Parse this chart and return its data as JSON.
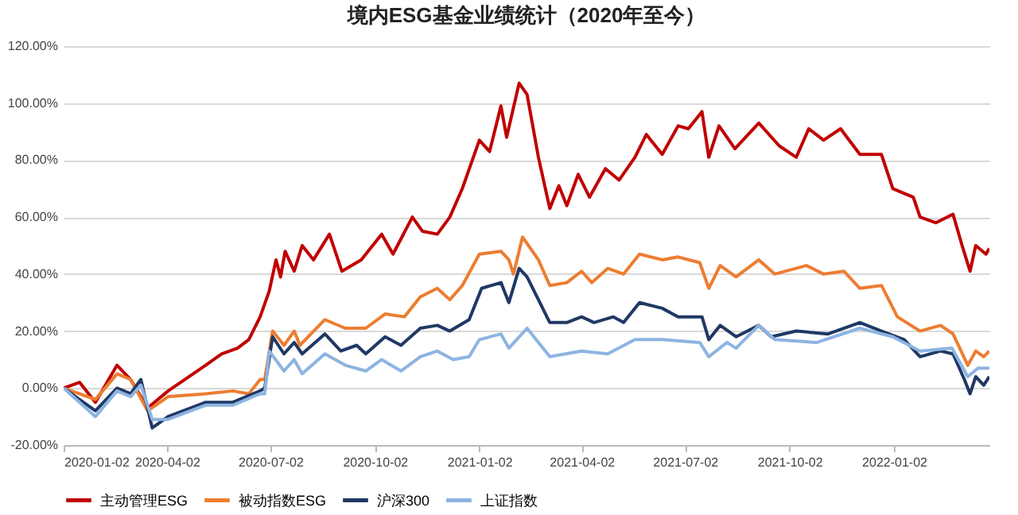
{
  "chart_data": {
    "type": "line",
    "title": "境内ESG基金业绩统计（2020年至今）",
    "xlim": [
      "2020-01-02",
      "2022-03-27"
    ],
    "xticks": [
      "2020-01-02",
      "2020-04-02",
      "2020-07-02",
      "2020-10-02",
      "2021-01-02",
      "2021-04-02",
      "2021-07-02",
      "2021-10-02",
      "2022-01-02"
    ],
    "ylim": [
      -20,
      120
    ],
    "yticks": [
      {
        "value": -20,
        "label": "-20.00%"
      },
      {
        "value": 0,
        "label": "0.00%"
      },
      {
        "value": 20,
        "label": "20.00%"
      },
      {
        "value": 40,
        "label": "40.00%"
      },
      {
        "value": 60,
        "label": "60.00%"
      },
      {
        "value": 80,
        "label": "80.00%"
      },
      {
        "value": 100,
        "label": "100.00%"
      },
      {
        "value": 120,
        "label": "120.00%"
      }
    ],
    "grid": "y",
    "legend": "bottom",
    "line_style": "solid",
    "marker": "none",
    "series": [
      {
        "name": "主动管理ESG",
        "color": "#c00000",
        "x": [
          "2020-01-02",
          "2020-01-16",
          "2020-01-30",
          "2020-02-18",
          "2020-03-01",
          "2020-03-16",
          "2020-04-03",
          "2020-05-06",
          "2020-05-20",
          "2020-06-03",
          "2020-06-13",
          "2020-06-23",
          "2020-07-01",
          "2020-07-07",
          "2020-07-11",
          "2020-07-15",
          "2020-07-23",
          "2020-07-30",
          "2020-08-09",
          "2020-08-23",
          "2020-09-03",
          "2020-09-20",
          "2020-10-08",
          "2020-10-18",
          "2020-11-04",
          "2020-11-13",
          "2020-11-26",
          "2020-12-07",
          "2020-12-18",
          "2021-01-02",
          "2021-01-11",
          "2021-01-21",
          "2021-01-26",
          "2021-02-06",
          "2021-02-13",
          "2021-02-23",
          "2021-03-05",
          "2021-03-13",
          "2021-03-20",
          "2021-03-30",
          "2021-04-09",
          "2021-04-23",
          "2021-05-05",
          "2021-05-19",
          "2021-05-29",
          "2021-06-12",
          "2021-06-26",
          "2021-07-05",
          "2021-07-17",
          "2021-07-23",
          "2021-08-01",
          "2021-08-15",
          "2021-09-05",
          "2021-09-23",
          "2021-10-08",
          "2021-10-19",
          "2021-11-01",
          "2021-11-16",
          "2021-12-03",
          "2021-12-22",
          "2022-01-01",
          "2022-01-19",
          "2022-01-25",
          "2022-02-08",
          "2022-02-23",
          "2022-03-03",
          "2022-03-10",
          "2022-03-15",
          "2022-03-24",
          "2022-03-27"
        ],
        "values": [
          0,
          2,
          -5,
          8,
          3,
          -7,
          -1,
          8,
          12,
          14,
          17,
          25,
          34,
          45,
          39,
          48,
          41,
          50,
          45,
          54,
          41,
          45,
          54,
          47,
          60,
          55,
          54,
          60,
          70,
          87,
          83,
          99,
          88,
          107,
          103,
          81,
          63,
          71,
          64,
          75,
          67,
          77,
          73,
          81,
          89,
          82,
          92,
          91,
          97,
          81,
          92,
          84,
          93,
          85,
          81,
          91,
          87,
          91,
          82,
          82,
          70,
          67,
          60,
          58,
          61,
          50,
          41,
          50,
          47,
          49
        ]
      },
      {
        "name": "被动指数ESG",
        "color": "#ed7d31",
        "x": [
          "2020-01-02",
          "2020-01-30",
          "2020-02-18",
          "2020-03-01",
          "2020-03-16",
          "2020-04-03",
          "2020-05-06",
          "2020-05-30",
          "2020-06-13",
          "2020-06-23",
          "2020-06-27",
          "2020-07-04",
          "2020-07-14",
          "2020-07-23",
          "2020-07-28",
          "2020-08-19",
          "2020-09-06",
          "2020-09-24",
          "2020-10-11",
          "2020-10-28",
          "2020-11-11",
          "2020-11-26",
          "2020-12-07",
          "2020-12-18",
          "2021-01-02",
          "2021-01-21",
          "2021-01-28",
          "2021-02-01",
          "2021-02-09",
          "2021-02-23",
          "2021-03-05",
          "2021-03-20",
          "2021-04-02",
          "2021-04-11",
          "2021-04-25",
          "2021-05-09",
          "2021-05-23",
          "2021-06-12",
          "2021-06-26",
          "2021-07-15",
          "2021-07-23",
          "2021-08-02",
          "2021-08-16",
          "2021-09-05",
          "2021-09-19",
          "2021-10-17",
          "2021-11-01",
          "2021-11-19",
          "2021-12-03",
          "2021-12-22",
          "2022-01-05",
          "2022-01-25",
          "2022-02-12",
          "2022-02-23",
          "2022-03-08",
          "2022-03-15",
          "2022-03-22",
          "2022-03-27"
        ],
        "values": [
          0,
          -4,
          5,
          3,
          -8,
          -3,
          -2,
          -1,
          -2,
          3,
          3,
          20,
          15,
          20,
          15,
          24,
          21,
          21,
          26,
          25,
          32,
          35,
          31,
          36,
          47,
          48,
          45,
          40,
          53,
          45,
          36,
          37,
          41,
          37,
          42,
          40,
          47,
          45,
          46,
          44,
          35,
          43,
          39,
          45,
          40,
          43,
          40,
          41,
          35,
          36,
          25,
          20,
          22,
          19,
          8,
          13,
          11,
          13
        ]
      },
      {
        "name": "沪深300",
        "color": "#203864",
        "x": [
          "2020-01-02",
          "2020-01-30",
          "2020-02-18",
          "2020-03-01",
          "2020-03-10",
          "2020-03-20",
          "2020-04-03",
          "2020-05-06",
          "2020-05-30",
          "2020-06-23",
          "2020-06-27",
          "2020-07-04",
          "2020-07-14",
          "2020-07-23",
          "2020-07-30",
          "2020-08-19",
          "2020-09-02",
          "2020-09-16",
          "2020-09-24",
          "2020-10-11",
          "2020-10-25",
          "2020-11-11",
          "2020-11-26",
          "2020-12-07",
          "2020-12-24",
          "2021-01-04",
          "2021-01-21",
          "2021-01-28",
          "2021-02-06",
          "2021-02-13",
          "2021-03-05",
          "2021-03-20",
          "2021-04-02",
          "2021-04-13",
          "2021-04-30",
          "2021-05-09",
          "2021-05-23",
          "2021-06-12",
          "2021-06-26",
          "2021-07-17",
          "2021-07-23",
          "2021-08-02",
          "2021-08-16",
          "2021-09-05",
          "2021-09-16",
          "2021-10-08",
          "2021-11-05",
          "2021-12-03",
          "2021-12-22",
          "2022-01-11",
          "2022-01-25",
          "2022-02-12",
          "2022-02-23",
          "2022-03-05",
          "2022-03-10",
          "2022-03-15",
          "2022-03-22",
          "2022-03-27"
        ],
        "values": [
          0,
          -8,
          0,
          -2,
          3,
          -14,
          -10,
          -5,
          -5,
          -1,
          0,
          18,
          12,
          16,
          12,
          19,
          13,
          15,
          12,
          18,
          15,
          21,
          22,
          20,
          24,
          35,
          37,
          30,
          42,
          39,
          23,
          23,
          25,
          23,
          25,
          23,
          30,
          28,
          25,
          25,
          17,
          22,
          18,
          22,
          18,
          20,
          19,
          23,
          20,
          17,
          11,
          13,
          12,
          3,
          -2,
          4,
          1,
          4
        ]
      },
      {
        "name": "上证指数",
        "color": "#8db4e2",
        "x": [
          "2020-01-02",
          "2020-01-30",
          "2020-02-18",
          "2020-03-01",
          "2020-03-10",
          "2020-03-20",
          "2020-04-03",
          "2020-05-06",
          "2020-05-30",
          "2020-06-23",
          "2020-06-27",
          "2020-07-01",
          "2020-07-14",
          "2020-07-23",
          "2020-07-30",
          "2020-08-19",
          "2020-09-06",
          "2020-09-24",
          "2020-10-08",
          "2020-10-25",
          "2020-11-11",
          "2020-11-26",
          "2020-12-10",
          "2020-12-24",
          "2021-01-02",
          "2021-01-21",
          "2021-01-28",
          "2021-02-13",
          "2021-03-05",
          "2021-04-02",
          "2021-04-25",
          "2021-05-19",
          "2021-06-12",
          "2021-07-15",
          "2021-07-23",
          "2021-08-08",
          "2021-08-16",
          "2021-09-05",
          "2021-09-19",
          "2021-10-26",
          "2021-12-03",
          "2022-01-01",
          "2022-01-25",
          "2022-02-22",
          "2022-03-08",
          "2022-03-17",
          "2022-03-27"
        ],
        "values": [
          0,
          -10,
          -1,
          -3,
          1,
          -11,
          -11,
          -6,
          -6,
          -2,
          -2,
          13,
          6,
          10,
          5,
          12,
          8,
          6,
          10,
          6,
          11,
          13,
          10,
          11,
          17,
          19,
          14,
          21,
          11,
          13,
          12,
          17,
          17,
          16,
          11,
          16,
          14,
          22,
          17,
          16,
          21,
          18,
          13,
          14,
          4,
          7,
          7
        ]
      }
    ]
  }
}
